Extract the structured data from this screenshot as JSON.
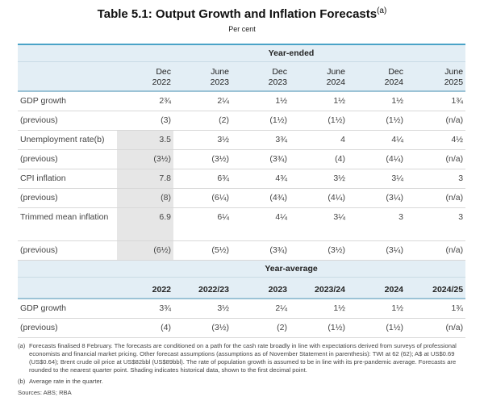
{
  "title": "Table 5.1: Output Growth and Inflation Forecasts",
  "title_note": "(a)",
  "subtitle": "Per cent",
  "year_ended": {
    "heading": "Year-ended",
    "columns": [
      [
        "Dec",
        "2022"
      ],
      [
        "June",
        "2023"
      ],
      [
        "Dec",
        "2023"
      ],
      [
        "June",
        "2024"
      ],
      [
        "Dec",
        "2024"
      ],
      [
        "June",
        "2025"
      ]
    ],
    "rows": [
      {
        "label": "GDP growth",
        "values": [
          "2¾",
          "2¼",
          "1½",
          "1½",
          "1½",
          "1¾"
        ]
      },
      {
        "label": "(previous)",
        "values": [
          "(3)",
          "(2)",
          "(1½)",
          "(1½)",
          "(1½)",
          "(n/a)"
        ]
      },
      {
        "label": "Unemployment rate(b)",
        "values": [
          "3.5",
          "3½",
          "3¾",
          "4",
          "4¼",
          "4½"
        ]
      },
      {
        "label": "(previous)",
        "values": [
          "(3½)",
          "(3½)",
          "(3¾)",
          "(4)",
          "(4¼)",
          "(n/a)"
        ]
      },
      {
        "label": "CPI inflation",
        "values": [
          "7.8",
          "6¾",
          "4¾",
          "3½",
          "3¼",
          "3"
        ]
      },
      {
        "label": "(previous)",
        "values": [
          "(8)",
          "(6¼)",
          "(4¾)",
          "(4¼)",
          "(3¼)",
          "(n/a)"
        ]
      },
      {
        "label": "Trimmed mean inflation",
        "values": [
          "6.9",
          "6¼",
          "4¼",
          "3¼",
          "3",
          "3"
        ]
      },
      {
        "label": "(previous)",
        "values": [
          "(6½)",
          "(5½)",
          "(3¾)",
          "(3½)",
          "(3¼)",
          "(n/a)"
        ]
      }
    ]
  },
  "year_average": {
    "heading": "Year-average",
    "columns": [
      "2022",
      "2022/23",
      "2023",
      "2023/24",
      "2024",
      "2024/25"
    ],
    "rows": [
      {
        "label": "GDP growth",
        "values": [
          "3¾",
          "3½",
          "2¼",
          "1½",
          "1½",
          "1¾"
        ]
      },
      {
        "label": "(previous)",
        "values": [
          "(4)",
          "(3½)",
          "(2)",
          "(1½)",
          "(1½)",
          "(n/a)"
        ]
      }
    ]
  },
  "shading_color": "#e6e6e6",
  "header_color": "#e3eef5",
  "footnotes": [
    {
      "key": "(a)",
      "text": "Forecasts finalised 8 February. The forecasts are conditioned on a path for the cash rate broadly in line with expectations derived from surveys of professional economists and financial market pricing. Other forecast assumptions (assumptions as of November Statement in parenthesis): TWI at 62 (62); A$ at US$0.69 (US$0.64); Brent crude oil price at US$82bbl (US$89bbl). The rate of population growth is assumed to be in line with its pre-pandemic average. Forecasts are rounded to the nearest quarter point. Shading indicates historical data, shown to the first decimal point."
    },
    {
      "key": "(b)",
      "text": "Average rate in the quarter."
    }
  ],
  "sources": "Sources: ABS; RBA"
}
